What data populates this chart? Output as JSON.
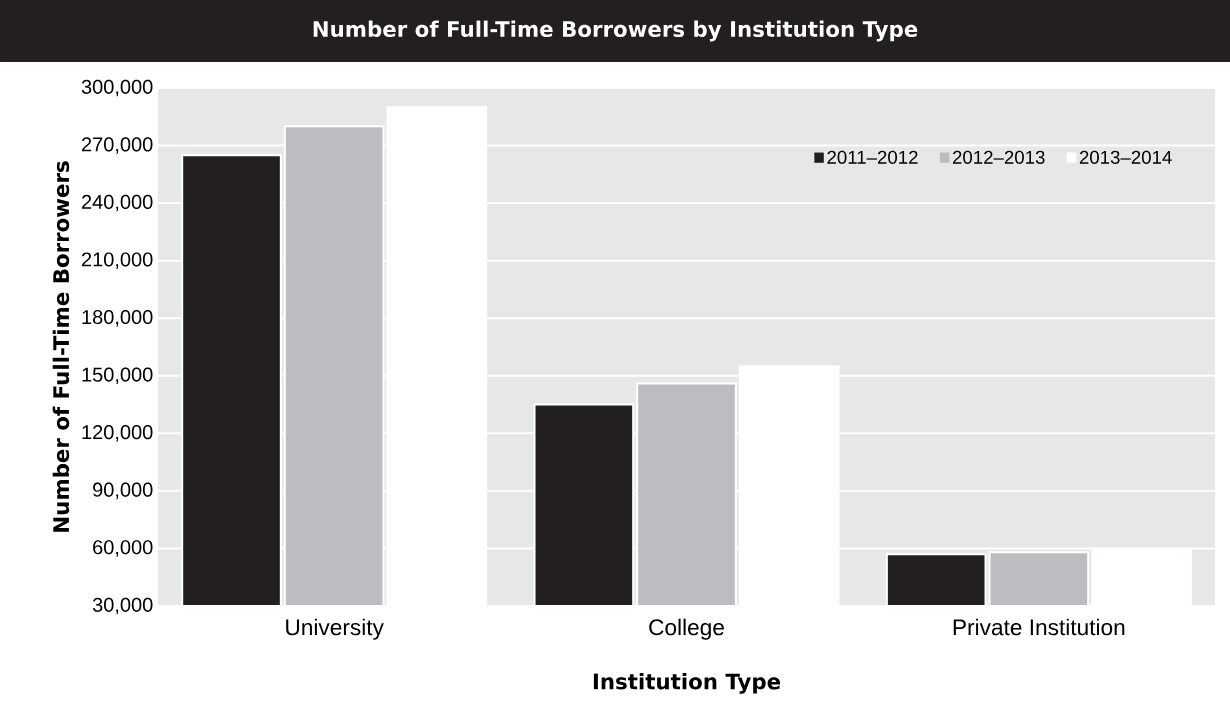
{
  "chart_data": {
    "type": "bar",
    "title": "Number of Full-Time Borrowers by Institution Type",
    "xlabel": "Institution Type",
    "ylabel": "Number of Full-Time Borrowers",
    "categories": [
      "University",
      "College",
      "Private Institution"
    ],
    "series": [
      {
        "name": "2011–2012",
        "color": "#231f20",
        "values": [
          265000,
          135000,
          57000
        ]
      },
      {
        "name": "2012–2013",
        "color": "#bcbdc0",
        "values": [
          280000,
          146000,
          58000
        ]
      },
      {
        "name": "2013–2014",
        "color": "#ffffff",
        "values": [
          290000,
          155000,
          59000
        ]
      }
    ],
    "ylim": [
      30000,
      300000
    ],
    "yticks": [
      {
        "value": 30000,
        "label": "30,000"
      },
      {
        "value": 60000,
        "label": "60,000"
      },
      {
        "value": 90000,
        "label": "90,000"
      },
      {
        "value": 120000,
        "label": "120,000"
      },
      {
        "value": 150000,
        "label": "150,000"
      },
      {
        "value": 180000,
        "label": "180,000"
      },
      {
        "value": 210000,
        "label": "210,000"
      },
      {
        "value": 240000,
        "label": "240,000"
      },
      {
        "value": 270000,
        "label": "270,000"
      },
      {
        "value": 300000,
        "label": "300,000"
      }
    ],
    "grid": "y",
    "legend": "top right"
  }
}
